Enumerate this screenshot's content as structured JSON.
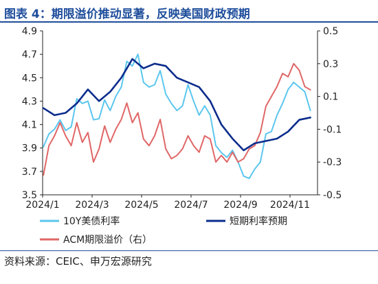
{
  "title": "图表 4：期限溢价推动显著，反映美国财政预期",
  "source": "资料来源：CEIC、申万宏源研究",
  "colors": {
    "title": "#1f4e9c",
    "axis": "#222222"
  },
  "chart_data": {
    "type": "line",
    "grid": false,
    "legend_placement": "bottom",
    "x_tick_labels": [
      "2024/1",
      "2024/3",
      "2024/5",
      "2024/7",
      "2024/9",
      "2024/11"
    ],
    "y_left": {
      "min": 3.5,
      "max": 4.9,
      "ticks": [
        3.5,
        3.7,
        3.9,
        4.1,
        4.3,
        4.5,
        4.7,
        4.9
      ]
    },
    "y_right": {
      "min": -0.5,
      "max": 0.5,
      "ticks": [
        -0.5,
        -0.3,
        -0.1,
        0.1,
        0.3,
        0.5
      ]
    },
    "series": [
      {
        "name": "10Y美债利率",
        "axis": "left",
        "color": "#5bc6ee",
        "width": 2,
        "x": [
          "2024-01-02",
          "2024-01-09",
          "2024-01-16",
          "2024-01-23",
          "2024-01-30",
          "2024-02-06",
          "2024-02-13",
          "2024-02-20",
          "2024-02-27",
          "2024-03-05",
          "2024-03-12",
          "2024-03-19",
          "2024-03-26",
          "2024-04-02",
          "2024-04-09",
          "2024-04-16",
          "2024-04-23",
          "2024-04-30",
          "2024-05-07",
          "2024-05-14",
          "2024-05-21",
          "2024-05-28",
          "2024-06-04",
          "2024-06-11",
          "2024-06-18",
          "2024-06-25",
          "2024-07-02",
          "2024-07-09",
          "2024-07-16",
          "2024-07-23",
          "2024-07-30",
          "2024-08-06",
          "2024-08-13",
          "2024-08-20",
          "2024-08-27",
          "2024-09-03",
          "2024-09-10",
          "2024-09-17",
          "2024-09-24",
          "2024-10-01",
          "2024-10-08",
          "2024-10-15",
          "2024-10-22",
          "2024-10-29",
          "2024-11-05",
          "2024-11-12",
          "2024-11-19",
          "2024-11-26",
          "2024-12-03"
        ],
        "y": [
          3.91,
          4.02,
          4.06,
          4.14,
          4.05,
          4.08,
          4.32,
          4.28,
          4.3,
          4.14,
          4.15,
          4.31,
          4.22,
          4.34,
          4.42,
          4.64,
          4.6,
          4.7,
          4.46,
          4.42,
          4.44,
          4.56,
          4.36,
          4.28,
          4.22,
          4.26,
          4.44,
          4.3,
          4.18,
          4.26,
          4.18,
          3.92,
          3.86,
          3.82,
          3.88,
          3.78,
          3.66,
          3.64,
          3.72,
          3.78,
          4.02,
          4.04,
          4.18,
          4.28,
          4.4,
          4.46,
          4.42,
          4.38,
          4.22
        ]
      },
      {
        "name": "短期利率预期",
        "axis": "left",
        "color": "#0b2c8c",
        "width": 2.6,
        "x": [
          "2024-01-02",
          "2024-01-16",
          "2024-01-30",
          "2024-02-13",
          "2024-02-27",
          "2024-03-12",
          "2024-03-26",
          "2024-04-09",
          "2024-04-23",
          "2024-05-07",
          "2024-05-21",
          "2024-06-04",
          "2024-06-18",
          "2024-07-02",
          "2024-07-16",
          "2024-07-30",
          "2024-08-13",
          "2024-08-27",
          "2024-09-10",
          "2024-09-24",
          "2024-10-08",
          "2024-10-22",
          "2024-11-05",
          "2024-11-19",
          "2024-12-03"
        ],
        "y": [
          4.24,
          4.18,
          4.2,
          4.28,
          4.4,
          4.3,
          4.38,
          4.5,
          4.66,
          4.58,
          4.62,
          4.6,
          4.5,
          4.46,
          4.42,
          4.3,
          4.1,
          3.98,
          3.88,
          3.94,
          3.96,
          3.98,
          4.04,
          4.14,
          4.16
        ]
      },
      {
        "name": "ACM期限溢价（右）",
        "axis": "right",
        "color": "#e06666",
        "width": 2,
        "x": [
          "2024-01-02",
          "2024-01-09",
          "2024-01-16",
          "2024-01-23",
          "2024-01-30",
          "2024-02-06",
          "2024-02-13",
          "2024-02-20",
          "2024-02-27",
          "2024-03-05",
          "2024-03-12",
          "2024-03-19",
          "2024-03-26",
          "2024-04-02",
          "2024-04-09",
          "2024-04-16",
          "2024-04-23",
          "2024-04-30",
          "2024-05-07",
          "2024-05-14",
          "2024-05-21",
          "2024-05-28",
          "2024-06-04",
          "2024-06-11",
          "2024-06-18",
          "2024-06-25",
          "2024-07-02",
          "2024-07-09",
          "2024-07-16",
          "2024-07-23",
          "2024-07-30",
          "2024-08-06",
          "2024-08-13",
          "2024-08-20",
          "2024-08-27",
          "2024-09-03",
          "2024-09-10",
          "2024-09-17",
          "2024-09-24",
          "2024-10-01",
          "2024-10-08",
          "2024-10-15",
          "2024-10-22",
          "2024-10-29",
          "2024-11-05",
          "2024-11-12",
          "2024-11-19",
          "2024-11-26",
          "2024-12-03"
        ],
        "y": [
          -0.38,
          -0.2,
          -0.14,
          -0.06,
          -0.14,
          -0.2,
          -0.06,
          -0.18,
          -0.12,
          -0.3,
          -0.22,
          -0.08,
          -0.18,
          -0.1,
          -0.04,
          0.06,
          -0.06,
          0.0,
          -0.16,
          -0.2,
          -0.14,
          -0.04,
          -0.22,
          -0.28,
          -0.26,
          -0.22,
          -0.14,
          -0.2,
          -0.24,
          -0.14,
          -0.16,
          -0.3,
          -0.26,
          -0.3,
          -0.24,
          -0.3,
          -0.28,
          -0.22,
          -0.2,
          -0.12,
          0.04,
          0.1,
          0.16,
          0.24,
          0.22,
          0.3,
          0.26,
          0.16,
          0.14
        ]
      }
    ]
  }
}
